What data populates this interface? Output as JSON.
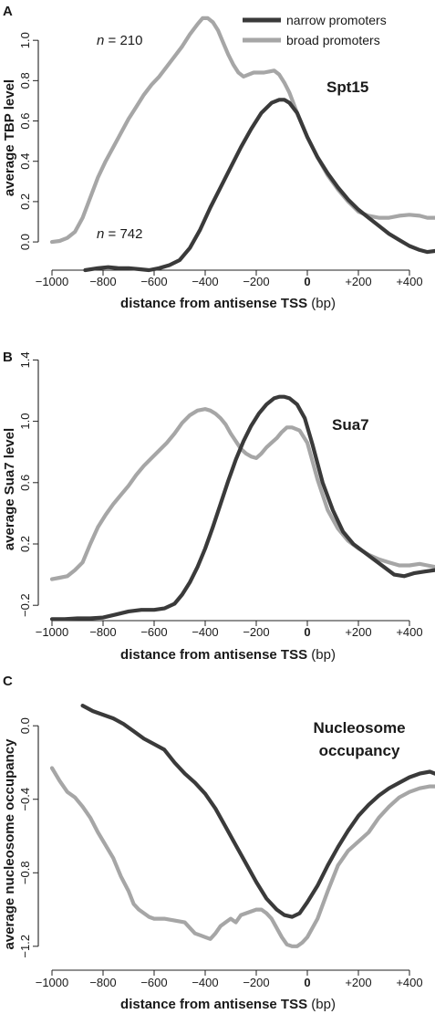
{
  "colors": {
    "narrow": "#3a3a3a",
    "broad": "#a6a6a6",
    "axis": "#222222"
  },
  "legend": {
    "narrow": "narrow promoters",
    "broad": "broad promoters"
  },
  "chart_data": [
    {
      "panel": "A",
      "type": "line",
      "title": "Spt15",
      "xlabel": "distance from antisense TSS",
      "xunit": "(bp)",
      "ylabel": "average TBP level",
      "xlim": [
        -1000,
        500
      ],
      "ylim": [
        -0.14,
        1.2
      ],
      "xticks": [
        -1000,
        -800,
        -600,
        -400,
        -200,
        0,
        200,
        400
      ],
      "xtick_labels": [
        "−1000",
        "−800",
        "−600",
        "−400",
        "−200",
        "0",
        "+200",
        "+400"
      ],
      "yticks": [
        0.0,
        0.2,
        0.4,
        0.6,
        0.8,
        1.0
      ],
      "ytick_labels": [
        "0.0",
        "0.2",
        "0.4",
        "0.6",
        "0.8",
        "1.0"
      ],
      "annotations": [
        {
          "text_italic": "n",
          "text": " = 210",
          "x": -880,
          "y": 1.0
        },
        {
          "text_italic": "n",
          "text": " = 742",
          "x": -880,
          "y": 0.0
        }
      ],
      "series": [
        {
          "key": "narrow",
          "name": "narrow promoters",
          "x": [
            -870,
            -820,
            -780,
            -740,
            -700,
            -660,
            -620,
            -580,
            -540,
            -500,
            -460,
            -420,
            -380,
            -340,
            -300,
            -260,
            -220,
            -180,
            -140,
            -110,
            -90,
            -70,
            -40,
            0,
            40,
            80,
            120,
            160,
            200,
            240,
            280,
            320,
            360,
            400,
            440,
            470,
            500
          ],
          "y": [
            -0.14,
            -0.13,
            -0.125,
            -0.13,
            -0.13,
            -0.135,
            -0.14,
            -0.13,
            -0.115,
            -0.09,
            -0.03,
            0.06,
            0.17,
            0.27,
            0.37,
            0.47,
            0.56,
            0.64,
            0.69,
            0.705,
            0.705,
            0.69,
            0.64,
            0.52,
            0.42,
            0.34,
            0.27,
            0.21,
            0.16,
            0.12,
            0.08,
            0.04,
            0.01,
            -0.02,
            -0.04,
            -0.05,
            -0.045
          ]
        },
        {
          "key": "broad",
          "name": "broad promoters",
          "x": [
            -1000,
            -970,
            -940,
            -910,
            -880,
            -850,
            -820,
            -790,
            -760,
            -730,
            -700,
            -670,
            -640,
            -610,
            -580,
            -550,
            -520,
            -490,
            -460,
            -430,
            -410,
            -390,
            -370,
            -350,
            -330,
            -310,
            -290,
            -270,
            -250,
            -230,
            -210,
            -190,
            -170,
            -150,
            -130,
            -110,
            -90,
            -70,
            -40,
            0,
            40,
            80,
            120,
            160,
            200,
            240,
            280,
            320,
            360,
            400,
            440,
            470,
            500
          ],
          "y": [
            0.0,
            0.005,
            0.02,
            0.05,
            0.12,
            0.22,
            0.32,
            0.4,
            0.47,
            0.54,
            0.61,
            0.67,
            0.73,
            0.78,
            0.82,
            0.87,
            0.92,
            0.97,
            1.03,
            1.08,
            1.11,
            1.11,
            1.09,
            1.05,
            0.99,
            0.93,
            0.88,
            0.84,
            0.82,
            0.83,
            0.84,
            0.84,
            0.84,
            0.845,
            0.85,
            0.83,
            0.79,
            0.74,
            0.64,
            0.52,
            0.42,
            0.33,
            0.26,
            0.2,
            0.15,
            0.13,
            0.12,
            0.12,
            0.13,
            0.135,
            0.13,
            0.12,
            0.12
          ]
        }
      ]
    },
    {
      "panel": "B",
      "type": "line",
      "title": "Sua7",
      "xlabel": "distance from antisense TSS",
      "xunit": "(bp)",
      "ylabel": "average Sua7 level",
      "xlim": [
        -1000,
        500
      ],
      "ylim": [
        -0.3,
        1.45
      ],
      "xticks": [
        -1000,
        -800,
        -600,
        -400,
        -200,
        0,
        200,
        400
      ],
      "xtick_labels": [
        "−1000",
        "−800",
        "−600",
        "−400",
        "−200",
        "0",
        "+200",
        "+400"
      ],
      "yticks": [
        -0.2,
        0.2,
        0.6,
        1.0,
        1.4
      ],
      "ytick_labels": [
        "−0.2",
        "0.2",
        "0.6",
        "1.0",
        "1.4"
      ],
      "series": [
        {
          "key": "narrow",
          "name": "narrow promoters",
          "x": [
            -1000,
            -950,
            -900,
            -850,
            -800,
            -750,
            -700,
            -650,
            -600,
            -560,
            -520,
            -490,
            -460,
            -430,
            -400,
            -370,
            -340,
            -310,
            -280,
            -250,
            -220,
            -190,
            -160,
            -130,
            -110,
            -90,
            -70,
            -40,
            -10,
            20,
            60,
            100,
            140,
            180,
            220,
            260,
            300,
            340,
            380,
            420,
            460,
            500
          ],
          "y": [
            -0.29,
            -0.29,
            -0.285,
            -0.285,
            -0.28,
            -0.26,
            -0.24,
            -0.23,
            -0.23,
            -0.22,
            -0.19,
            -0.13,
            -0.05,
            0.05,
            0.17,
            0.31,
            0.46,
            0.61,
            0.75,
            0.87,
            0.97,
            1.05,
            1.11,
            1.15,
            1.16,
            1.16,
            1.15,
            1.11,
            1.02,
            0.85,
            0.6,
            0.42,
            0.28,
            0.2,
            0.15,
            0.1,
            0.05,
            0.0,
            -0.01,
            0.01,
            0.02,
            0.03
          ]
        },
        {
          "key": "broad",
          "name": "broad promoters",
          "x": [
            -1000,
            -970,
            -940,
            -910,
            -880,
            -850,
            -820,
            -790,
            -760,
            -730,
            -700,
            -670,
            -640,
            -610,
            -580,
            -550,
            -520,
            -490,
            -460,
            -430,
            -400,
            -380,
            -360,
            -340,
            -320,
            -300,
            -280,
            -260,
            -240,
            -220,
            -200,
            -180,
            -160,
            -140,
            -120,
            -100,
            -80,
            -60,
            -30,
            0,
            40,
            80,
            120,
            160,
            200,
            240,
            280,
            320,
            360,
            400,
            440,
            470,
            500
          ],
          "y": [
            -0.03,
            -0.02,
            -0.01,
            0.03,
            0.08,
            0.2,
            0.31,
            0.39,
            0.46,
            0.52,
            0.58,
            0.65,
            0.71,
            0.76,
            0.81,
            0.86,
            0.92,
            0.99,
            1.04,
            1.07,
            1.08,
            1.07,
            1.05,
            1.02,
            0.98,
            0.92,
            0.87,
            0.82,
            0.79,
            0.77,
            0.76,
            0.79,
            0.83,
            0.86,
            0.89,
            0.93,
            0.96,
            0.96,
            0.94,
            0.86,
            0.62,
            0.42,
            0.3,
            0.22,
            0.17,
            0.13,
            0.1,
            0.08,
            0.06,
            0.06,
            0.07,
            0.06,
            0.05
          ]
        }
      ]
    },
    {
      "panel": "C",
      "type": "line",
      "title_lines": [
        "Nucleosome",
        "occupancy"
      ],
      "xlabel": "distance from antisense TSS",
      "xunit": "(bp)",
      "ylabel": "average nucleosome occupancy",
      "xlim": [
        -1000,
        500
      ],
      "ylim": [
        -1.33,
        0.15
      ],
      "xticks": [
        -1000,
        -800,
        -600,
        -400,
        -200,
        0,
        200,
        400
      ],
      "xtick_labels": [
        "−1000",
        "−800",
        "−600",
        "−400",
        "−200",
        "0",
        "+200",
        "+400"
      ],
      "yticks": [
        -1.2,
        -0.8,
        -0.4,
        0.0
      ],
      "ytick_labels": [
        "−1.2",
        "−0.8",
        "−0.4",
        "0.0"
      ],
      "series": [
        {
          "key": "narrow",
          "name": "narrow promoters",
          "x": [
            -880,
            -840,
            -800,
            -760,
            -720,
            -680,
            -640,
            -600,
            -560,
            -520,
            -480,
            -440,
            -400,
            -360,
            -320,
            -280,
            -240,
            -200,
            -160,
            -120,
            -90,
            -60,
            -30,
            0,
            40,
            80,
            120,
            160,
            200,
            240,
            280,
            320,
            360,
            400,
            440,
            480,
            500
          ],
          "y": [
            0.11,
            0.08,
            0.06,
            0.04,
            0.01,
            -0.03,
            -0.07,
            -0.1,
            -0.13,
            -0.2,
            -0.26,
            -0.31,
            -0.37,
            -0.45,
            -0.55,
            -0.65,
            -0.75,
            -0.85,
            -0.94,
            -1.0,
            -1.03,
            -1.04,
            -1.02,
            -0.96,
            -0.87,
            -0.76,
            -0.66,
            -0.57,
            -0.49,
            -0.43,
            -0.38,
            -0.34,
            -0.31,
            -0.28,
            -0.26,
            -0.25,
            -0.26
          ]
        },
        {
          "key": "broad",
          "name": "broad promoters",
          "x": [
            -1000,
            -970,
            -940,
            -910,
            -880,
            -850,
            -820,
            -790,
            -760,
            -730,
            -700,
            -680,
            -660,
            -640,
            -620,
            -600,
            -560,
            -520,
            -480,
            -460,
            -440,
            -420,
            -400,
            -380,
            -360,
            -340,
            -320,
            -300,
            -280,
            -260,
            -240,
            -220,
            -200,
            -180,
            -160,
            -140,
            -120,
            -100,
            -80,
            -60,
            -40,
            -20,
            0,
            40,
            80,
            120,
            160,
            200,
            240,
            280,
            320,
            360,
            400,
            440,
            480,
            500
          ],
          "y": [
            -0.23,
            -0.3,
            -0.36,
            -0.39,
            -0.44,
            -0.5,
            -0.58,
            -0.65,
            -0.72,
            -0.82,
            -0.9,
            -0.97,
            -1.0,
            -1.02,
            -1.04,
            -1.05,
            -1.05,
            -1.06,
            -1.07,
            -1.1,
            -1.13,
            -1.14,
            -1.15,
            -1.16,
            -1.13,
            -1.09,
            -1.07,
            -1.05,
            -1.07,
            -1.03,
            -1.02,
            -1.01,
            -1.0,
            -1.0,
            -1.02,
            -1.05,
            -1.1,
            -1.15,
            -1.19,
            -1.2,
            -1.2,
            -1.18,
            -1.15,
            -1.05,
            -0.9,
            -0.76,
            -0.68,
            -0.63,
            -0.58,
            -0.5,
            -0.44,
            -0.39,
            -0.36,
            -0.34,
            -0.33,
            -0.33
          ]
        }
      ]
    }
  ]
}
